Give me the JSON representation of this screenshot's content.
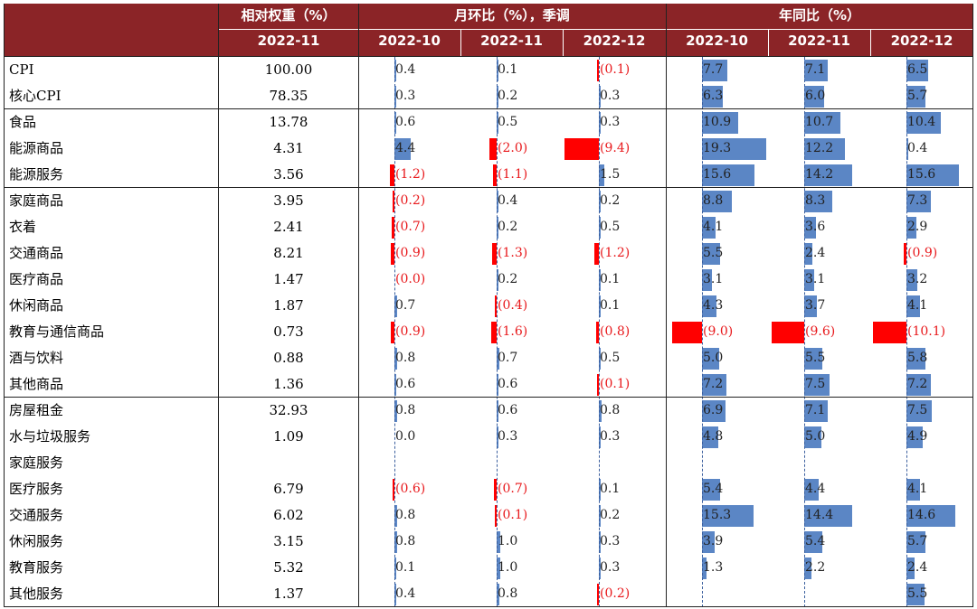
{
  "chart_data": {
    "type": "table",
    "colors": {
      "header_bg": "#8b2427",
      "positive_bar": "#5b86c5",
      "negative_bar": "#ff0000",
      "negative_text": "#e8191c"
    },
    "header": {
      "weight_group": "相对权重（%）",
      "mom_group": "月环比（%），季调",
      "yoy_group": "年同比（%）",
      "weight_period": "2022-11",
      "periods": [
        "2022-10",
        "2022-11",
        "2022-12"
      ]
    },
    "rows": [
      {
        "label": "CPI",
        "weight": "100.00",
        "mom": [
          0.4,
          0.1,
          -0.1
        ],
        "yoy": [
          7.7,
          7.1,
          6.5
        ]
      },
      {
        "label": "核心CPI",
        "weight": "78.35",
        "mom": [
          0.3,
          0.2,
          0.3
        ],
        "yoy": [
          6.3,
          6.0,
          5.7
        ]
      },
      {
        "label": "食品",
        "weight": "13.78",
        "mom": [
          0.6,
          0.5,
          0.3
        ],
        "yoy": [
          10.9,
          10.7,
          10.4
        ]
      },
      {
        "label": "能源商品",
        "weight": "4.31",
        "mom": [
          4.4,
          -2.0,
          -9.4
        ],
        "yoy": [
          19.3,
          12.2,
          0.4
        ]
      },
      {
        "label": "能源服务",
        "weight": "3.56",
        "mom": [
          -1.2,
          -1.1,
          1.5
        ],
        "yoy": [
          15.6,
          14.2,
          15.6
        ]
      },
      {
        "label": "家庭商品",
        "weight": "3.95",
        "mom": [
          -0.2,
          0.4,
          0.2
        ],
        "yoy": [
          8.8,
          8.3,
          7.3
        ]
      },
      {
        "label": "衣着",
        "weight": "2.41",
        "mom": [
          -0.7,
          0.2,
          0.5
        ],
        "yoy": [
          4.1,
          3.6,
          2.9
        ]
      },
      {
        "label": "交通商品",
        "weight": "8.21",
        "mom": [
          -0.9,
          -1.3,
          -1.2
        ],
        "yoy": [
          5.5,
          2.4,
          -0.9
        ]
      },
      {
        "label": "医疗商品",
        "weight": "1.47",
        "mom": [
          -0.0,
          0.2,
          0.1
        ],
        "yoy": [
          3.1,
          3.1,
          3.2
        ]
      },
      {
        "label": "休闲商品",
        "weight": "1.87",
        "mom": [
          0.7,
          -0.4,
          0.1
        ],
        "yoy": [
          4.3,
          3.7,
          4.1
        ]
      },
      {
        "label": "教育与通信商品",
        "weight": "0.73",
        "mom": [
          -0.9,
          -1.6,
          -0.8
        ],
        "yoy": [
          -9.0,
          -9.6,
          -10.1
        ]
      },
      {
        "label": "酒与饮料",
        "weight": "0.88",
        "mom": [
          0.8,
          0.7,
          0.5
        ],
        "yoy": [
          5.0,
          5.5,
          5.8
        ]
      },
      {
        "label": "其他商品",
        "weight": "1.36",
        "mom": [
          0.6,
          0.6,
          -0.1
        ],
        "yoy": [
          7.2,
          7.5,
          7.2
        ]
      },
      {
        "label": "房屋租金",
        "weight": "32.93",
        "mom": [
          0.8,
          0.6,
          0.8
        ],
        "yoy": [
          6.9,
          7.1,
          7.5
        ]
      },
      {
        "label": "水与垃圾服务",
        "weight": "1.09",
        "mom": [
          0.0,
          0.3,
          0.3
        ],
        "yoy": [
          4.8,
          5.0,
          4.9
        ]
      },
      {
        "label": "家庭服务",
        "weight": "",
        "mom": [
          null,
          null,
          null
        ],
        "yoy": [
          null,
          null,
          null
        ]
      },
      {
        "label": "医疗服务",
        "weight": "6.79",
        "mom": [
          -0.6,
          -0.7,
          0.1
        ],
        "yoy": [
          5.4,
          4.4,
          4.1
        ]
      },
      {
        "label": "交通服务",
        "weight": "6.02",
        "mom": [
          0.8,
          -0.1,
          0.2
        ],
        "yoy": [
          15.3,
          14.4,
          14.6
        ]
      },
      {
        "label": "休闲服务",
        "weight": "3.15",
        "mom": [
          0.8,
          1.0,
          0.3
        ],
        "yoy": [
          3.9,
          5.4,
          5.7
        ]
      },
      {
        "label": "教育服务",
        "weight": "5.32",
        "mom": [
          0.1,
          1.0,
          0.3
        ],
        "yoy": [
          1.3,
          2.2,
          2.4
        ]
      },
      {
        "label": "其他服务",
        "weight": "1.37",
        "mom": [
          0.4,
          0.8,
          -0.2
        ],
        "yoy": [
          null,
          null,
          5.5
        ]
      }
    ]
  }
}
